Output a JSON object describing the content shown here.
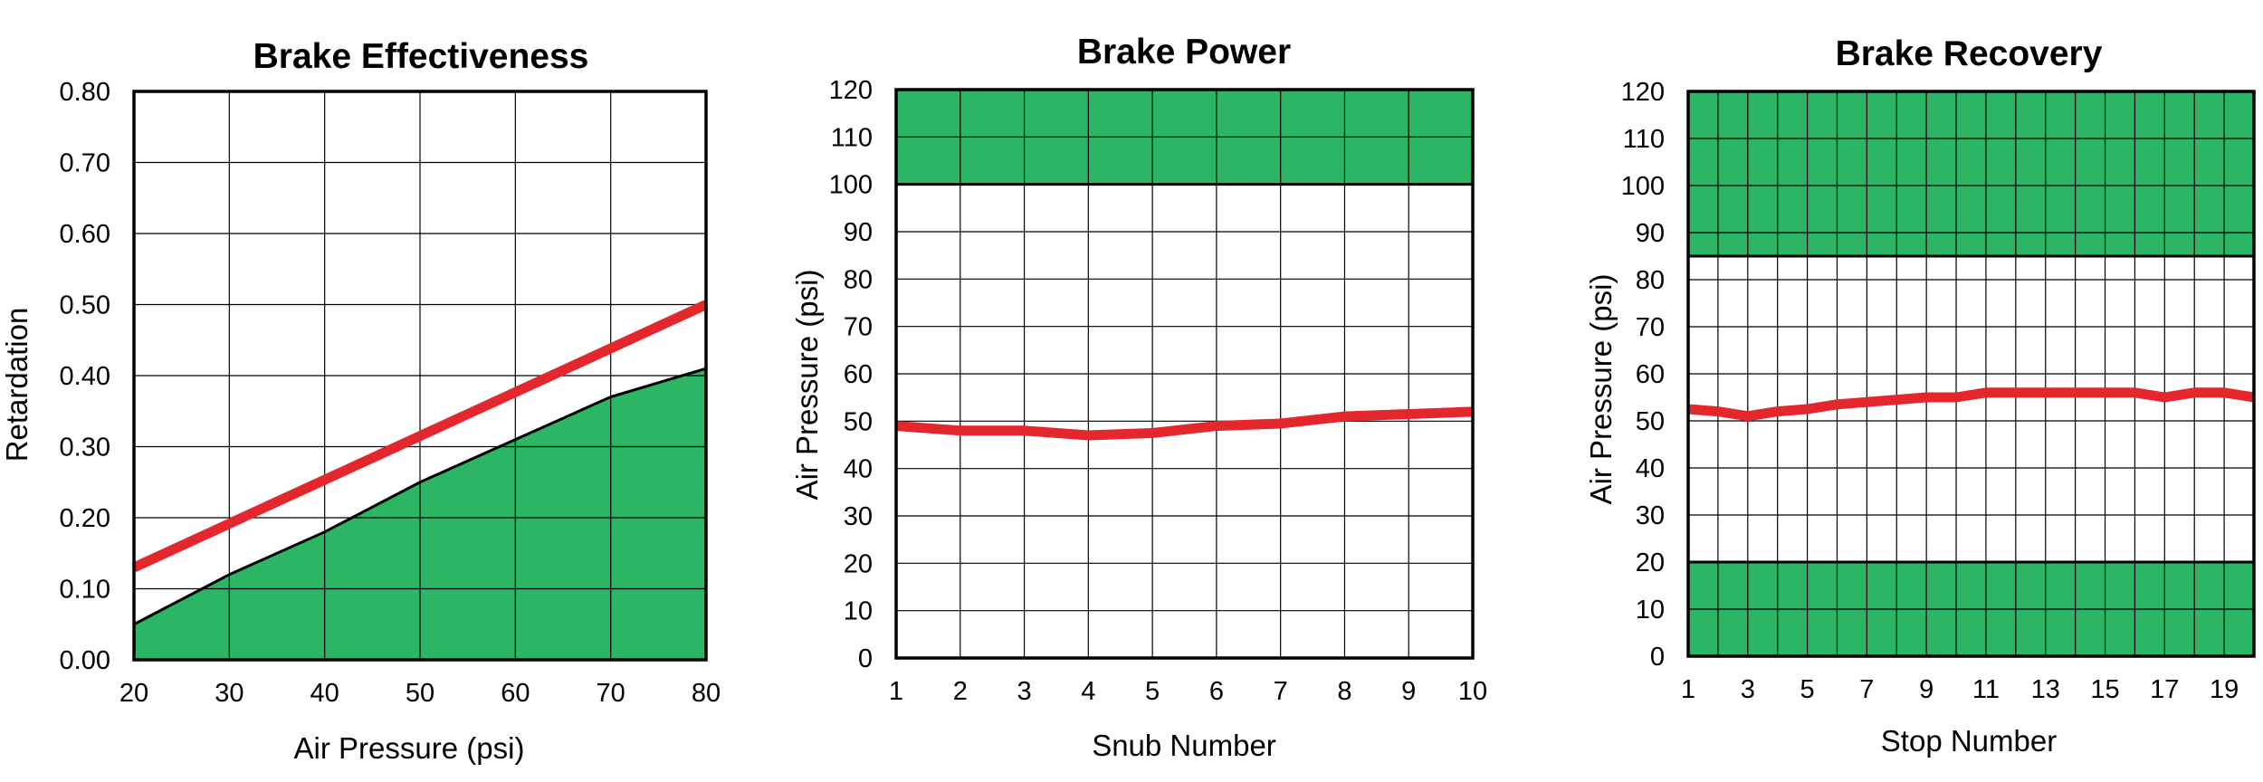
{
  "colors": {
    "zone": "#2bb564",
    "line": "#e4272d",
    "frame": "#000000"
  },
  "chart_data": [
    {
      "id": "effectiveness",
      "type": "area",
      "title": "Brake Effectiveness",
      "xlabel": "Air Pressure (psi)",
      "ylabel": "Retardation",
      "xlim": [
        20,
        80
      ],
      "ylim": [
        0,
        0.8
      ],
      "x_ticks": [
        "20",
        "30",
        "40",
        "50",
        "60",
        "70",
        "80"
      ],
      "y_ticks": [
        "0.00",
        "0.10",
        "0.20",
        "0.30",
        "0.40",
        "0.50",
        "0.60",
        "0.70",
        "0.80"
      ],
      "grid": true,
      "area": {
        "x": [
          20,
          30,
          40,
          50,
          60,
          70,
          80
        ],
        "y": [
          0.05,
          0.12,
          0.18,
          0.25,
          0.31,
          0.37,
          0.41
        ]
      },
      "line": {
        "x": [
          20,
          80
        ],
        "y": [
          0.13,
          0.5
        ]
      }
    },
    {
      "id": "power",
      "type": "line",
      "title": "Brake Power",
      "xlabel": "Snub Number",
      "ylabel": "Air Pressure (psi)",
      "xlim": [
        1,
        10
      ],
      "ylim": [
        0,
        120
      ],
      "x_ticks": [
        "1",
        "2",
        "3",
        "4",
        "5",
        "6",
        "7",
        "8",
        "9",
        "10"
      ],
      "y_ticks": [
        "0",
        "10",
        "20",
        "30",
        "40",
        "50",
        "60",
        "70",
        "80",
        "90",
        "100",
        "110",
        "120"
      ],
      "grid": true,
      "bands": [
        {
          "from": 100,
          "to": 120
        }
      ],
      "line": {
        "x": [
          1,
          2,
          3,
          4,
          5,
          6,
          7,
          8,
          9,
          10
        ],
        "y": [
          49,
          48,
          48,
          47,
          47.5,
          49,
          49.5,
          51,
          51.5,
          52
        ]
      }
    },
    {
      "id": "recovery",
      "type": "line",
      "title": "Brake Recovery",
      "xlabel": "Stop Number",
      "ylabel": "Air Pressure (psi)",
      "xlim": [
        1,
        20
      ],
      "ylim": [
        0,
        120
      ],
      "x_ticks": [
        "1",
        "3",
        "5",
        "7",
        "9",
        "11",
        "13",
        "15",
        "17",
        "19"
      ],
      "y_ticks": [
        "0",
        "10",
        "20",
        "30",
        "40",
        "50",
        "60",
        "70",
        "80",
        "90",
        "100",
        "110",
        "120"
      ],
      "grid": true,
      "bands": [
        {
          "from": 85,
          "to": 120
        },
        {
          "from": 0,
          "to": 20
        }
      ],
      "line": {
        "x": [
          1,
          2,
          3,
          4,
          5,
          6,
          7,
          8,
          9,
          10,
          11,
          12,
          13,
          14,
          15,
          16,
          17,
          18,
          19,
          20
        ],
        "y": [
          52.5,
          52,
          51,
          52,
          52.5,
          53.5,
          54,
          54.5,
          55,
          55,
          56,
          56,
          56,
          56,
          56,
          56,
          55,
          56,
          56,
          55
        ]
      }
    }
  ]
}
